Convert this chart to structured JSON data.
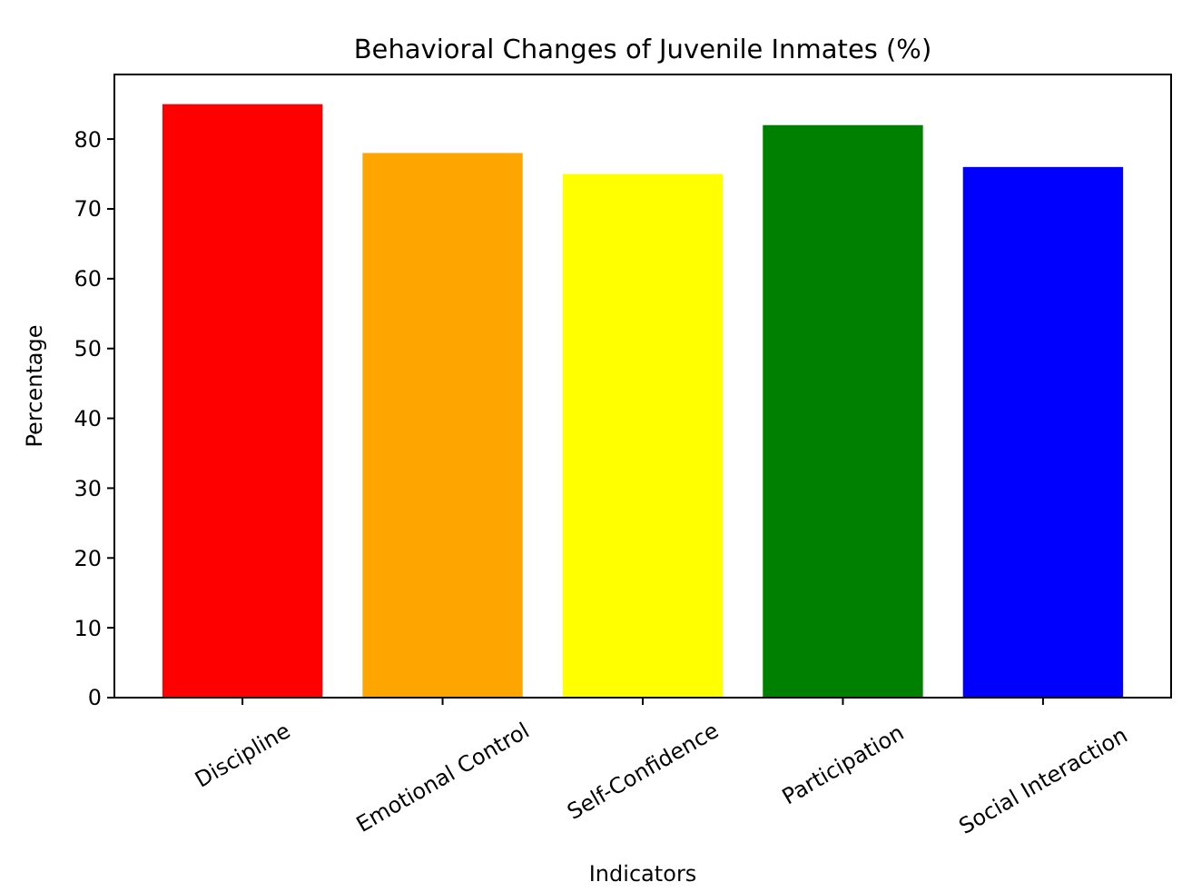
{
  "chart_data": {
    "type": "bar",
    "title": "Behavioral Changes of Juvenile Inmates (%)",
    "xlabel": "Indicators",
    "ylabel": "Percentage",
    "categories": [
      "Discipline",
      "Emotional Control",
      "Self-Confidence",
      "Participation",
      "Social Interaction"
    ],
    "values": [
      85,
      78,
      75,
      82,
      76
    ],
    "colors": [
      "#ff0000",
      "#ffa500",
      "#ffff00",
      "#008000",
      "#0000ff"
    ],
    "ylim": [
      0,
      89.25
    ],
    "yticks": [
      0,
      10,
      20,
      30,
      40,
      50,
      60,
      70,
      80
    ],
    "grid": false
  }
}
